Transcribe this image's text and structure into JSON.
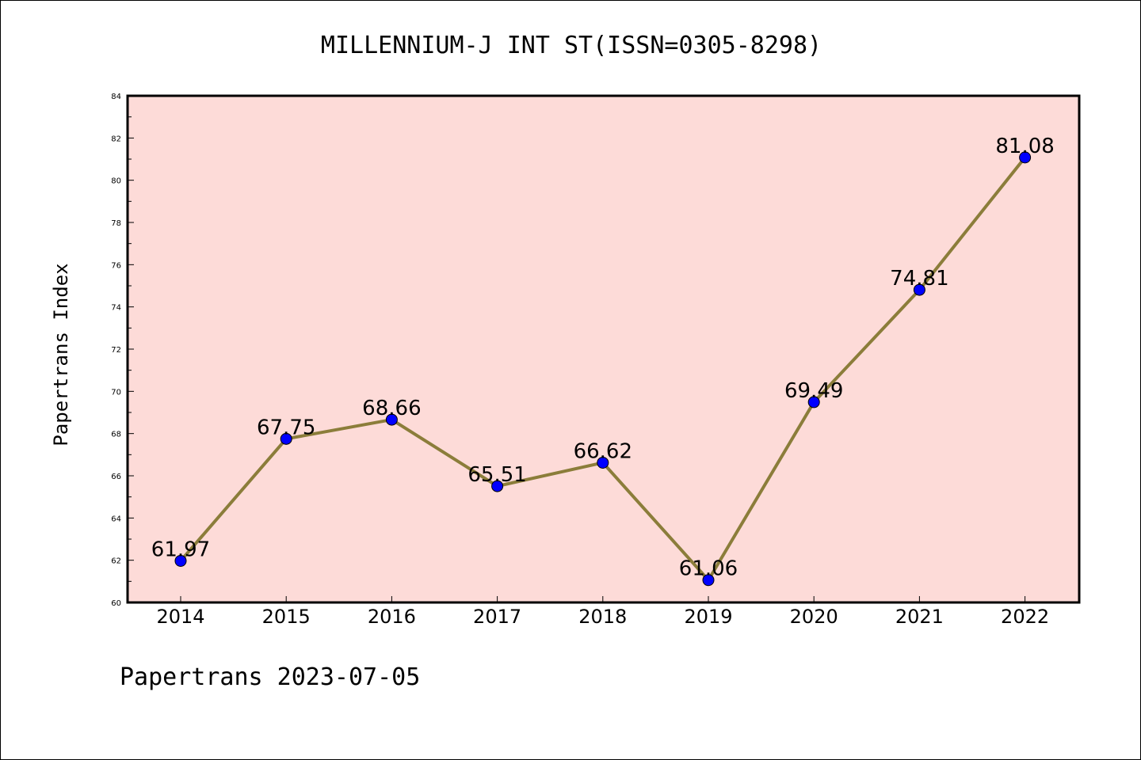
{
  "chart_data": {
    "type": "line",
    "title": "MILLENNIUM-J INT ST(ISSN=0305-8298)",
    "xlabel": "",
    "ylabel": "Papertrans Index",
    "categories": [
      "2014",
      "2015",
      "2016",
      "2017",
      "2018",
      "2019",
      "2020",
      "2021",
      "2022"
    ],
    "series": [
      {
        "values": [
          61.97,
          67.75,
          68.66,
          65.51,
          66.62,
          61.06,
          69.49,
          74.81,
          81.08
        ]
      }
    ],
    "data_labels": [
      "61.97",
      "67.75",
      "68.66",
      "65.51",
      "66.62",
      "61.06",
      "69.49",
      "74.81",
      "81.08"
    ],
    "ylim": [
      60,
      84
    ],
    "y_ticks": [
      "60",
      "62",
      "64",
      "66",
      "68",
      "70",
      "72",
      "74",
      "76",
      "78",
      "80",
      "82",
      "84"
    ],
    "grid": false,
    "colors": {
      "plot_background": "#fddbd8",
      "line": "#8b7d3a",
      "marker": "#0000ff"
    }
  },
  "footer": "Papertrans 2023-07-05"
}
